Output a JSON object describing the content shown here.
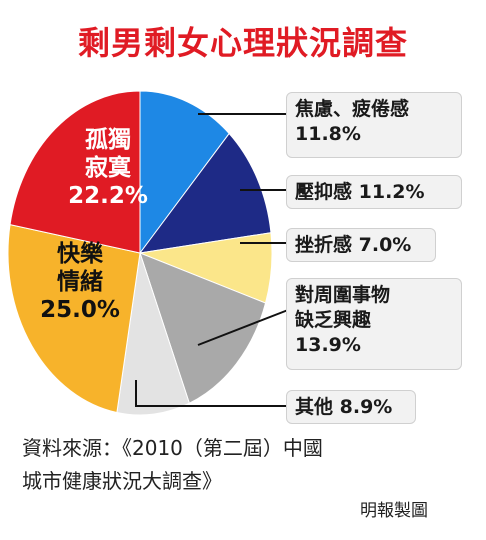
{
  "colors": {
    "title": "#e01b24",
    "lonely": "#e01b24",
    "happy": "#f7b32b",
    "other": "#e3e3e3",
    "lack": "#a9a9a9",
    "frustrated": "#fbe68a",
    "depressed": "#1e2a86",
    "anxious": "#1e88e5"
  },
  "chart_data": {
    "type": "pie",
    "title": "剩男剩女心理狀況調查",
    "slices": [
      {
        "key": "anxious",
        "label": "焦慮、疲倦感",
        "value": 11.8,
        "value_label": "11.8%",
        "color": "#1e88e5"
      },
      {
        "key": "depressed",
        "label": "壓抑感",
        "value": 11.2,
        "value_label": "11.2%",
        "color": "#1e2a86"
      },
      {
        "key": "frustrated",
        "label": "挫折感",
        "value": 7.0,
        "value_label": "7.0%",
        "color": "#fbe68a"
      },
      {
        "key": "lack",
        "label": "對周圍事物缺乏興趣",
        "value": 13.9,
        "value_label": "13.9%",
        "color": "#a9a9a9"
      },
      {
        "key": "other",
        "label": "其他",
        "value": 8.9,
        "value_label": "8.9%",
        "color": "#e3e3e3"
      },
      {
        "key": "happy",
        "label": "快樂情緒",
        "value": 25.0,
        "value_label": "25.0%",
        "color": "#f7b32b"
      },
      {
        "key": "lonely",
        "label": "孤獨寂寞",
        "value": 22.2,
        "value_label": "22.2%",
        "color": "#e01b24"
      }
    ]
  },
  "labels": {
    "anxious": {
      "name": "焦慮、疲倦感",
      "pct": "11.8%"
    },
    "depressed": {
      "name": "壓抑感",
      "pct": "11.2%"
    },
    "frustrated": {
      "name": "挫折感",
      "pct": "7.0%"
    },
    "lack": {
      "line1": "對周圍事物",
      "line2": "缺乏興趣",
      "pct": "13.9%"
    },
    "other": {
      "name": "其他",
      "pct": "8.9%"
    },
    "lonely": {
      "line1": "孤獨",
      "line2": "寂寞",
      "pct": "22.2%"
    },
    "happy": {
      "line1": "快樂",
      "line2": "情緒",
      "pct": "25.0%"
    }
  },
  "source": {
    "line1": "資料來源：《2010（第二屆）中國",
    "line2": "城市健康狀況大調查》"
  },
  "credit": "明報製圖"
}
